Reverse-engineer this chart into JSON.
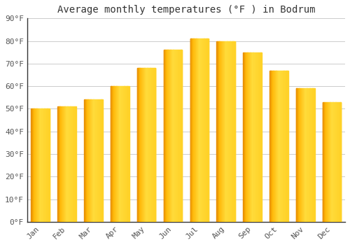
{
  "title": "Average monthly temperatures (°F ) in Bodrum",
  "months": [
    "Jan",
    "Feb",
    "Mar",
    "Apr",
    "May",
    "Jun",
    "Jul",
    "Aug",
    "Sep",
    "Oct",
    "Nov",
    "Dec"
  ],
  "values": [
    50,
    51,
    54,
    60,
    68,
    76,
    81,
    80,
    75,
    67,
    59,
    53
  ],
  "ylim": [
    0,
    90
  ],
  "yticks": [
    0,
    10,
    20,
    30,
    40,
    50,
    60,
    70,
    80,
    90
  ],
  "ytick_labels": [
    "0°F",
    "10°F",
    "20°F",
    "30°F",
    "40°F",
    "50°F",
    "60°F",
    "70°F",
    "80°F",
    "90°F"
  ],
  "background_color": "#FFFFFF",
  "grid_color": "#CCCCCC",
  "title_fontsize": 10,
  "tick_fontsize": 8,
  "bar_width": 0.7,
  "bar_color_center": "#FFD060",
  "bar_color_left": "#F5A800",
  "bar_color_right": "#FFE080",
  "tick_color": "#555555"
}
